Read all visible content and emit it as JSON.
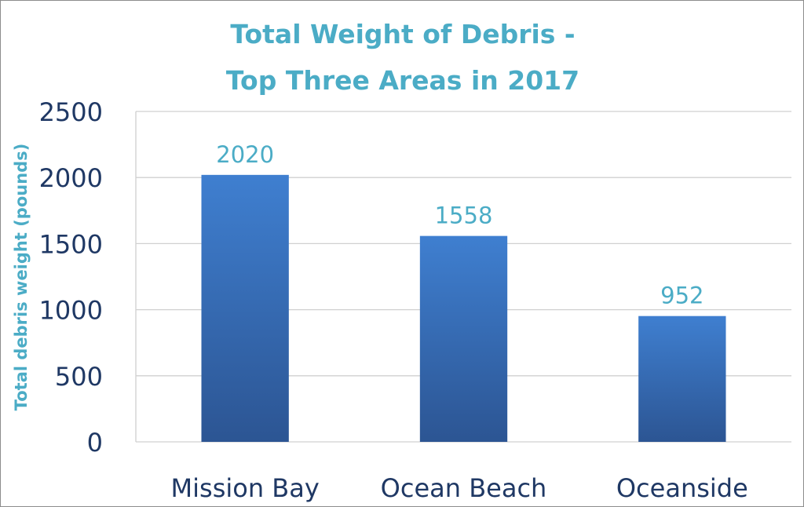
{
  "chart_data": {
    "type": "bar",
    "title_lines": [
      "Total Weight of Debris -",
      "Top Three Areas in 2017"
    ],
    "xlabel": "",
    "ylabel": "Total debris weight (pounds)",
    "categories": [
      "Mission Bay",
      "Ocean Beach",
      "Oceanside"
    ],
    "values": [
      2020,
      1558,
      952
    ],
    "data_labels": [
      "2020",
      "1558",
      "952"
    ],
    "ylim": [
      0,
      2500
    ],
    "yticks": [
      0,
      500,
      1000,
      1500,
      2000,
      2500
    ],
    "ytick_labels": [
      "0",
      "500",
      "1000",
      "1500",
      "2000",
      "2500"
    ],
    "grid": true,
    "legend": "none",
    "colors": {
      "bar_top": "#3f7fd0",
      "bar_bottom": "#2c5593",
      "title": "#4bacc6",
      "tick": "#1f3864",
      "grid": "#d0d0d0"
    }
  }
}
